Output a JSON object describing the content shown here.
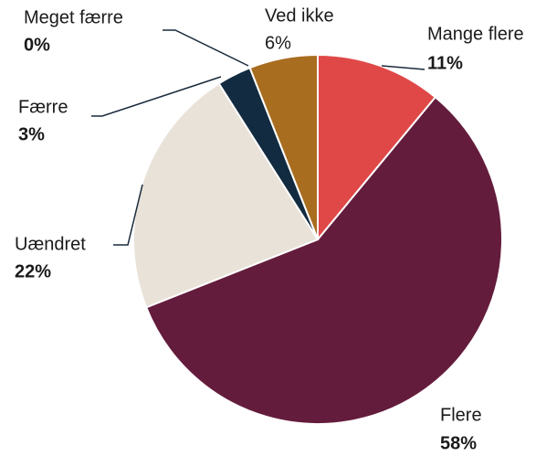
{
  "chart_data": {
    "type": "pie",
    "categories": [
      "Mange flere",
      "Flere",
      "Uændret",
      "Færre",
      "Meget færre",
      "Ved ikke"
    ],
    "values": [
      11,
      58,
      22,
      3,
      0,
      6
    ],
    "value_labels": [
      "11%",
      "58%",
      "22%",
      "3%",
      "0%",
      "6%"
    ],
    "colors": [
      "#e04848",
      "#641c3c",
      "#e8e2d8",
      "#132b40",
      "#7f7f7f",
      "#a86d1f"
    ]
  }
}
